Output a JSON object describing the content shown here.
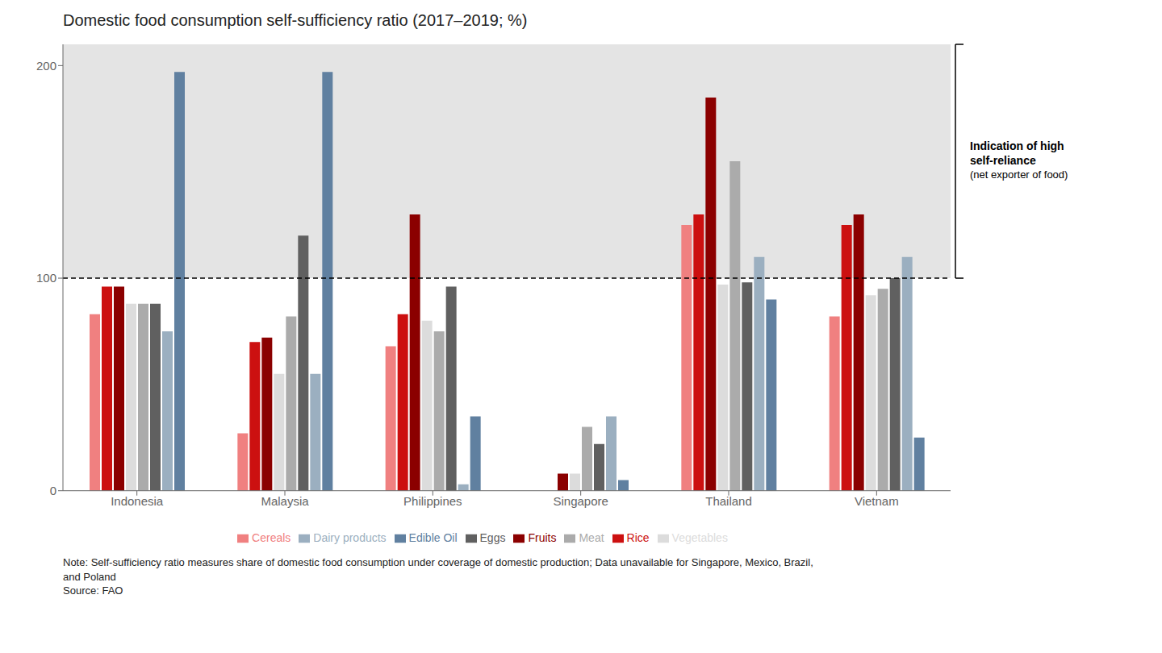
{
  "chart_data": {
    "type": "bar",
    "title": "Domestic food consumption self-sufficiency ratio (2017–2019; %)",
    "categories": [
      "Indonesia",
      "Malaysia",
      "Philippines",
      "Singapore",
      "Thailand",
      "Vietnam"
    ],
    "series": [
      {
        "name": "Cereals",
        "color": "#F08080",
        "values": [
          83,
          27,
          68,
          0,
          125,
          82
        ]
      },
      {
        "name": "Rice",
        "color": "#CC1010",
        "values": [
          96,
          70,
          83,
          0,
          130,
          125
        ]
      },
      {
        "name": "Fruits",
        "color": "#8B0000",
        "values": [
          96,
          72,
          130,
          8,
          185,
          130
        ]
      },
      {
        "name": "Vegetables",
        "color": "#DCDCDC",
        "values": [
          88,
          55,
          80,
          8,
          97,
          92
        ]
      },
      {
        "name": "Meat",
        "color": "#ABABAB",
        "values": [
          88,
          82,
          75,
          30,
          155,
          95
        ]
      },
      {
        "name": "Eggs",
        "color": "#606060",
        "values": [
          88,
          120,
          96,
          22,
          98,
          100
        ]
      },
      {
        "name": "Dairy products",
        "color": "#9BAFC0",
        "values": [
          75,
          55,
          3,
          35,
          110,
          110
        ]
      },
      {
        "name": "Edible Oil",
        "color": "#6080A0",
        "values": [
          197,
          197,
          35,
          5,
          90,
          25
        ]
      }
    ],
    "ylim": [
      0,
      210
    ],
    "yticks": [
      0,
      100,
      200
    ],
    "reference_line": 100,
    "grid": false,
    "legend": "bottom",
    "annotations": [
      "Indication of high\nself-reliance\n(net exporter of food)",
      "Note: Self-sufficiency ratio measures share of domestic food consumption under coverage of domestic production; Data unavailable for Singapore, Mexico, Brazil,\nand Poland\nSource: FAO"
    ]
  }
}
